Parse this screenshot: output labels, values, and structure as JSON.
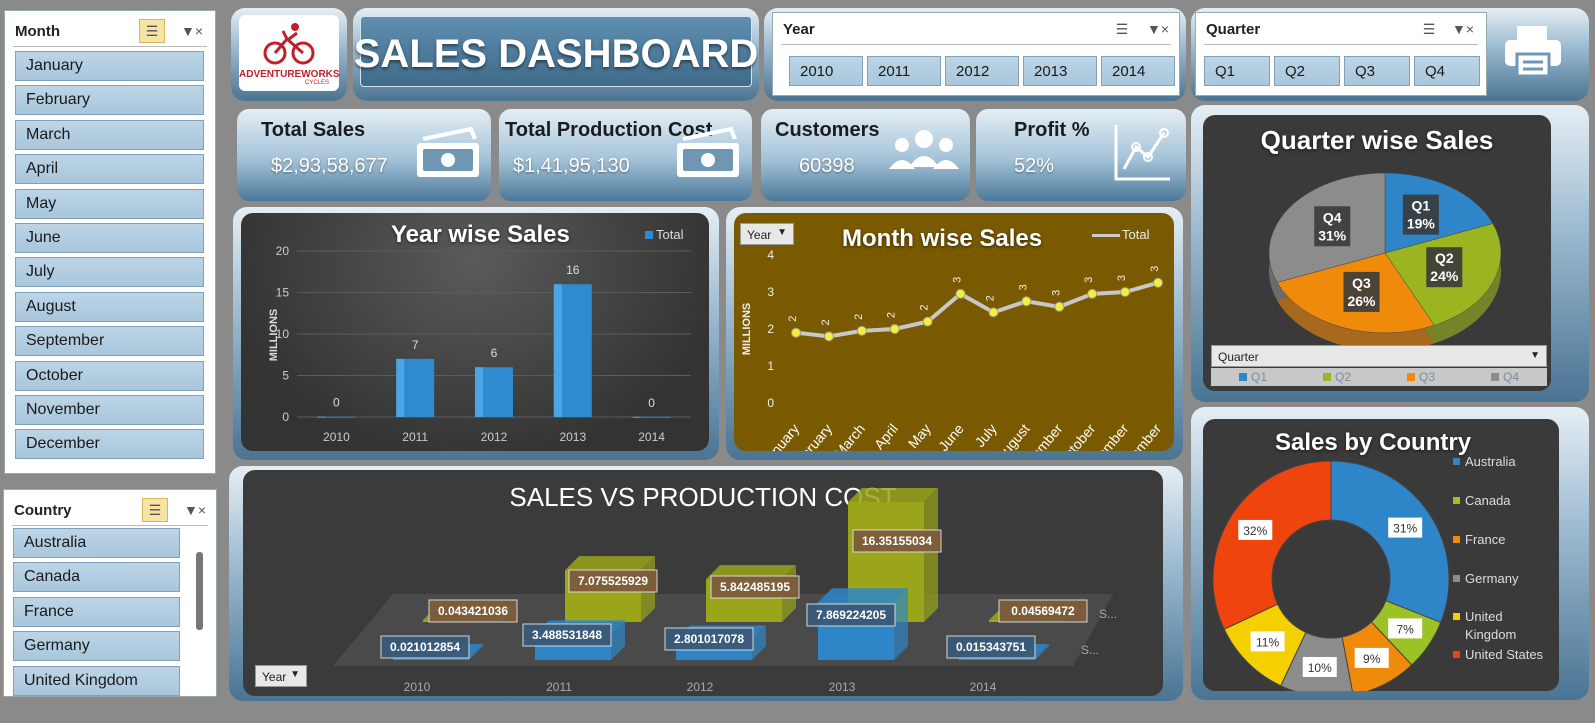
{
  "slicers": {
    "month": {
      "title": "Month",
      "items": [
        "January",
        "February",
        "March",
        "April",
        "May",
        "June",
        "July",
        "August",
        "September",
        "October",
        "November",
        "December"
      ]
    },
    "country": {
      "title": "Country",
      "items": [
        "Australia",
        "Canada",
        "France",
        "Germany",
        "United Kingdom"
      ]
    },
    "year": {
      "title": "Year",
      "items": [
        "2010",
        "2011",
        "2012",
        "2013",
        "2014"
      ]
    },
    "quarter": {
      "title": "Quarter",
      "items": [
        "Q1",
        "Q2",
        "Q3",
        "Q4"
      ]
    }
  },
  "header": {
    "logo_text": "ADVENTUREWORKS",
    "logo_sub": "CYCLES",
    "title": "SALES DASHBOARD"
  },
  "kpis": {
    "total_sales": {
      "label": "Total Sales",
      "value": "$2,93,58,677"
    },
    "production_cost": {
      "label": "Total Production Cost",
      "value": "$1,41,95,130"
    },
    "customers": {
      "label": "Customers",
      "value": "60398"
    },
    "profit": {
      "label": "Profit %",
      "value": "52%"
    }
  },
  "colors": {
    "accent_blue": "#2e8bd0",
    "olive_bg": "#7a5a00",
    "q1": "#2e86c8",
    "q2": "#9bb521",
    "q3": "#f08a0a",
    "q4": "#8c8c8c",
    "australia": "#2e86c8",
    "canada": "#9bc226",
    "france": "#f08a0a",
    "germany": "#8c8c8c",
    "united_kingdom": "#f4d000",
    "united_states": "#f0440e"
  },
  "chart_data": [
    {
      "id": "year_wise_sales",
      "type": "bar",
      "title": "Year wise Sales",
      "legend": "Total",
      "ylabel": "MILLIONS",
      "categories": [
        "2010",
        "2011",
        "2012",
        "2013",
        "2014"
      ],
      "values": [
        0.04,
        7,
        6,
        16,
        0.03
      ],
      "data_labels": [
        "0",
        "7",
        "6",
        "16",
        "0"
      ],
      "ylim": [
        0,
        20
      ],
      "yticks": [
        "0",
        "5",
        "10",
        "15",
        "20"
      ]
    },
    {
      "id": "month_wise_sales",
      "type": "line",
      "title": "Month wise Sales",
      "legend": "Total",
      "filter_label": "Year",
      "ylabel": "MILLIONS",
      "categories": [
        "January",
        "February",
        "March",
        "April",
        "May",
        "June",
        "July",
        "August",
        "September",
        "October",
        "November",
        "December"
      ],
      "values": [
        1.9,
        1.8,
        1.95,
        2.0,
        2.2,
        2.95,
        2.45,
        2.75,
        2.6,
        2.95,
        3.0,
        3.25
      ],
      "data_labels": [
        "2",
        "2",
        "2",
        "2",
        "2",
        "3",
        "2",
        "3",
        "3",
        "3",
        "3",
        "3"
      ],
      "ylim": [
        0,
        4
      ],
      "yticks": [
        "0",
        "1",
        "2",
        "3",
        "4"
      ]
    },
    {
      "id": "quarter_wise_sales",
      "type": "pie",
      "title": "Quarter wise Sales",
      "filter_label": "Quarter",
      "labels": [
        "Q1",
        "Q2",
        "Q3",
        "Q4"
      ],
      "values": [
        19,
        24,
        26,
        31
      ],
      "data_labels": [
        "19%",
        "24%",
        "26%",
        "31%"
      ]
    },
    {
      "id": "sales_by_country",
      "type": "pie",
      "title": "Sales by Country",
      "labels": [
        "Australia",
        "Canada",
        "France",
        "Germany",
        "United Kingdom",
        "United States"
      ],
      "values": [
        31,
        7,
        9,
        10,
        11,
        32
      ],
      "data_labels": [
        "31%",
        "7%",
        "9%",
        "10%",
        "11%",
        "32%"
      ]
    },
    {
      "id": "sales_vs_production_cost",
      "type": "bar",
      "title": "SALES VS PRODUCTION COST",
      "filter_label": "Year",
      "categories": [
        "2010",
        "2011",
        "2012",
        "2013",
        "2014"
      ],
      "series": [
        {
          "values": [
            0.021012854,
            3.488531848,
            2.801017078,
            7.869224205,
            0.015343751
          ],
          "data_labels": [
            "0.021012854",
            "3.488531848",
            "2.801017078",
            "7.869224205",
            "0.015343751"
          ]
        },
        {
          "values": [
            0.043421036,
            7.075525929,
            5.842485195,
            16.35155034,
            0.04569472
          ],
          "data_labels": [
            "0.043421036",
            "7.075525929",
            "5.842485195",
            "16.35155034",
            "0.04569472"
          ]
        }
      ],
      "series_axis_labels": [
        "S...",
        "S..."
      ]
    }
  ]
}
